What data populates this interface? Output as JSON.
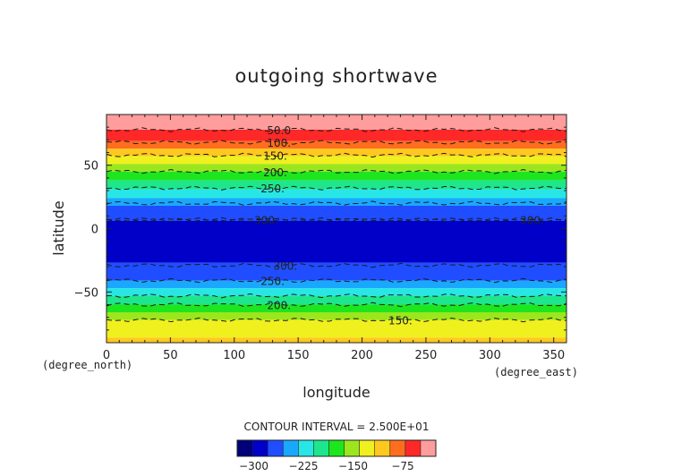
{
  "chart_data": {
    "type": "heatmap",
    "title": "outgoing shortwave",
    "xlabel": "longitude",
    "ylabel": "latitude",
    "x_unit_label": "(degree_east)",
    "y_unit_label": "(degree_north)",
    "xlim": [
      0,
      360
    ],
    "ylim": [
      -90,
      90
    ],
    "x_ticks": [
      0,
      50,
      100,
      150,
      200,
      250,
      300,
      350
    ],
    "y_ticks": [
      -50,
      0,
      50
    ],
    "contour_interval_text": "CONTOUR INTERVAL = 2.500E+01",
    "colorbar": {
      "levels": [
        -325,
        -300,
        -275,
        -250,
        -225,
        -200,
        -175,
        -150,
        -125,
        -100,
        -75,
        -50,
        -25
      ],
      "tick_values": [
        -300,
        -225,
        -150,
        -75
      ],
      "tick_labels": [
        "−300",
        "−225",
        "−150",
        "−75"
      ],
      "colors": [
        "#00007a",
        "#0000c8",
        "#1f4dff",
        "#1aa8ff",
        "#28e6e6",
        "#1ee68c",
        "#1ee61e",
        "#9ce61e",
        "#f0f01e",
        "#ffc81e",
        "#ff6e1e",
        "#ff2828",
        "#ff9c9c"
      ]
    },
    "bands": [
      {
        "lat_bottom": 78,
        "lat_top": 90,
        "color": "#ff9c9c"
      },
      {
        "lat_bottom": 69,
        "lat_top": 78,
        "color": "#ff2828"
      },
      {
        "lat_bottom": 63,
        "lat_top": 69,
        "color": "#ff6e1e"
      },
      {
        "lat_bottom": 57,
        "lat_top": 63,
        "color": "#ffc81e"
      },
      {
        "lat_bottom": 51,
        "lat_top": 57,
        "color": "#f0f01e"
      },
      {
        "lat_bottom": 45,
        "lat_top": 51,
        "color": "#9ce61e"
      },
      {
        "lat_bottom": 38,
        "lat_top": 45,
        "color": "#1ee61e"
      },
      {
        "lat_bottom": 31,
        "lat_top": 38,
        "color": "#1ee68c"
      },
      {
        "lat_bottom": 24,
        "lat_top": 31,
        "color": "#28e6e6"
      },
      {
        "lat_bottom": 18,
        "lat_top": 24,
        "color": "#1aa8ff"
      },
      {
        "lat_bottom": 6,
        "lat_top": 18,
        "color": "#1f4dff"
      },
      {
        "lat_bottom": -27,
        "lat_top": 6,
        "color": "#0000c8"
      },
      {
        "lat_bottom": -41,
        "lat_top": -27,
        "color": "#1f4dff"
      },
      {
        "lat_bottom": -47,
        "lat_top": -41,
        "color": "#1aa8ff"
      },
      {
        "lat_bottom": -53,
        "lat_top": -47,
        "color": "#28e6e6"
      },
      {
        "lat_bottom": -60,
        "lat_top": -53,
        "color": "#1ee68c"
      },
      {
        "lat_bottom": -66,
        "lat_top": -60,
        "color": "#1ee61e"
      },
      {
        "lat_bottom": -72,
        "lat_top": -66,
        "color": "#9ce61e"
      },
      {
        "lat_bottom": -86,
        "lat_top": -72,
        "color": "#f0f01e"
      },
      {
        "lat_bottom": -90,
        "lat_top": -86,
        "color": "#ffc81e"
      }
    ],
    "contours": [
      {
        "lat": 78,
        "label": "50.0",
        "label_lon": 135
      },
      {
        "lat": 68,
        "label": "100.",
        "label_lon": 135
      },
      {
        "lat": 58,
        "label": "150.",
        "label_lon": 132
      },
      {
        "lat": 45,
        "label": "200.",
        "label_lon": 132
      },
      {
        "lat": 32,
        "label": "250.",
        "label_lon": 130
      },
      {
        "lat": 20,
        "label": "",
        "label_lon": null
      },
      {
        "lat": 7,
        "label": "300.",
        "label_lon": 125
      },
      {
        "lat": 7,
        "label": "300.",
        "label_lon": 333
      },
      {
        "lat": -29,
        "label": "300.",
        "label_lon": 140
      },
      {
        "lat": -41,
        "label": "250.",
        "label_lon": 130
      },
      {
        "lat": -53,
        "label": "",
        "label_lon": null
      },
      {
        "lat": -60,
        "label": "200.",
        "label_lon": 135
      },
      {
        "lat": -72,
        "label": "150.",
        "label_lon": 230
      }
    ]
  }
}
